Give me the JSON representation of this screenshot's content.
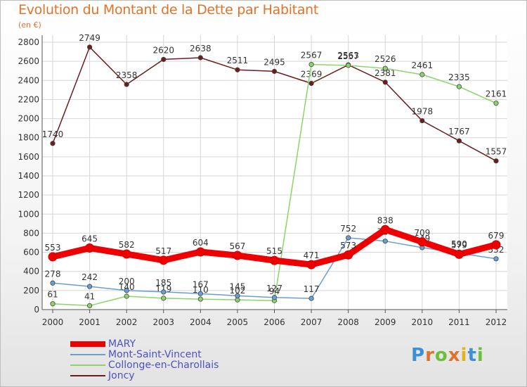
{
  "title": "Evolution du Montant de la Dette par Habitant",
  "subtitle": "(en €)",
  "logo": {
    "text": "Proxiti",
    "letter_colors": [
      "#3d8fd6",
      "#e0732a",
      "#6cbf3a",
      "#e0732a",
      "#e2b31c",
      "#3d8fd6",
      "#6cbf3a"
    ]
  },
  "chart_data": {
    "type": "line",
    "x": [
      "2000",
      "2001",
      "2002",
      "2003",
      "2004",
      "2005",
      "2006",
      "2007",
      "2008",
      "2009",
      "2010",
      "2011",
      "2012"
    ],
    "ylim": [
      0,
      2800
    ],
    "yticks": [
      "0",
      "200",
      "400",
      "600",
      "800",
      "1000",
      "1200",
      "1400",
      "1600",
      "1800",
      "2000",
      "2200",
      "2400",
      "2600",
      "2800"
    ],
    "grid": true,
    "legend_position": "bottom-left",
    "series": [
      {
        "name": "Joncy",
        "color": "#6b1d1d",
        "values": [
          1740,
          2749,
          2358,
          2620,
          2638,
          2511,
          2495,
          2369,
          2563,
          2381,
          1978,
          1767,
          1557
        ],
        "labels": [
          "1740",
          "2749",
          "2358",
          "2620",
          "2638",
          "2511",
          "2495",
          "2369",
          "2563",
          "2381",
          "1978",
          "1767",
          "1557"
        ]
      },
      {
        "name": "Collonge-en-Charollais",
        "color": "#8cd46a",
        "values": [
          61,
          41,
          140,
          119,
          110,
          102,
          94,
          2567,
          2557,
          2526,
          2461,
          2335,
          2161
        ],
        "labels": [
          "61",
          "41",
          "140",
          "119",
          "110",
          "102",
          "94",
          "2567",
          "2557",
          "2526",
          "2461",
          "2335",
          "2161"
        ]
      },
      {
        "name": "Mont-Saint-Vincent",
        "color": "#6a9ed3",
        "values": [
          278,
          242,
          200,
          185,
          167,
          145,
          127,
          117,
          752,
          717,
          649,
          590,
          532
        ],
        "labels": [
          "278",
          "242",
          "200",
          "185",
          "167",
          "145",
          "127",
          "117",
          "752",
          "717",
          "649",
          "590",
          "532"
        ]
      },
      {
        "name": "MARY",
        "color": "#ee0000",
        "values": [
          553,
          645,
          582,
          517,
          604,
          567,
          515,
          471,
          573,
          838,
          709,
          579,
          679
        ],
        "labels": [
          "553",
          "645",
          "582",
          "517",
          "604",
          "567",
          "515",
          "471",
          "573",
          "838",
          "709",
          "579",
          "679"
        ]
      }
    ]
  },
  "legend": [
    {
      "name": "MARY",
      "color": "#ee0000",
      "thick": true
    },
    {
      "name": "Mont-Saint-Vincent",
      "color": "#6a9ed3",
      "thick": false
    },
    {
      "name": "Collonge-en-Charollais",
      "color": "#8cd46a",
      "thick": false
    },
    {
      "name": "Joncy",
      "color": "#6b1d1d",
      "thick": false
    }
  ]
}
